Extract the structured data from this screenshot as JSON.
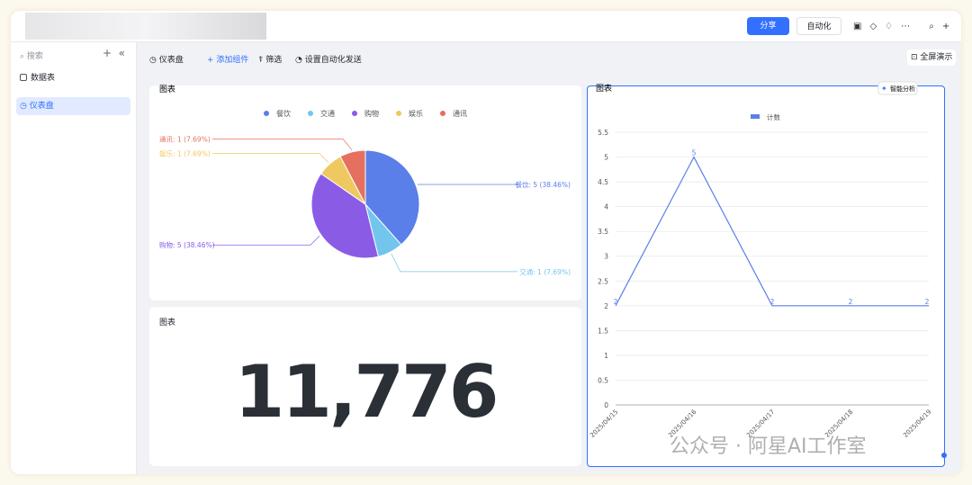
{
  "topbar": {
    "share": "分享",
    "automation": "自动化"
  },
  "sidebar": {
    "search": "搜索",
    "items": [
      "数据表",
      "仪表盘"
    ]
  },
  "toolbar": {
    "title": "仪表盘",
    "add": "添加组件",
    "filter": "筛选",
    "auto_send": "设置自动化发送",
    "fullscreen": "全屏演示"
  },
  "pie_widget": {
    "title": "图表",
    "type": "pie",
    "categories": [
      "餐饮",
      "交通",
      "购物",
      "娱乐",
      "通讯"
    ],
    "values": [
      5,
      1,
      5,
      1,
      1
    ],
    "value_labels": [
      "餐饮: 5 (38.46%)",
      "交通: 1 (7.69%)",
      "购物: 5 (38.46%)",
      "娱乐: 1 (7.69%)",
      "通讯: 1 (7.69%)"
    ],
    "colors": [
      "#5b7fe8",
      "#72c6ee",
      "#8a5ce6",
      "#f0c860",
      "#e5705f"
    ]
  },
  "number_widget": {
    "title": "图表",
    "value": "11,776"
  },
  "line_widget": {
    "title": "图表",
    "smart": "智能分析",
    "type": "line",
    "x": [
      "2025/04/15",
      "2025/04/16",
      "2025/04/17",
      "2025/04/18",
      "2025/04/19"
    ],
    "series": [
      {
        "name": "计数",
        "color": "#5b7fe8",
        "values": [
          2,
          5,
          2,
          2,
          2
        ]
      }
    ],
    "ylim": [
      0,
      5.5
    ],
    "yticks": [
      0,
      0.5,
      1,
      1.5,
      2,
      2.5,
      3,
      3.5,
      4,
      4.5,
      5,
      5.5
    ],
    "grid": true
  },
  "watermark": "公众号 · 阿星AI工作室"
}
